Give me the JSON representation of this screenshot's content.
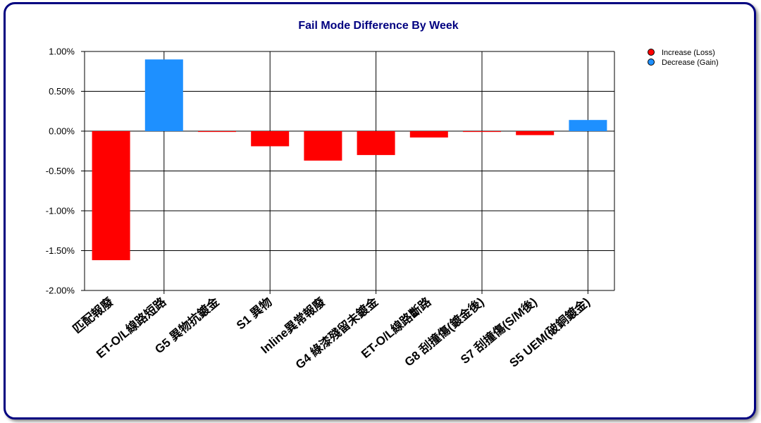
{
  "chart_data": {
    "type": "bar",
    "title": "Fail Mode Difference By Week",
    "xlabel": "",
    "ylabel": "",
    "ylim": [
      -0.02,
      0.01
    ],
    "yticks": [
      "1.00%",
      "0.50%",
      "0.00%",
      "-0.50%",
      "-1.00%",
      "-1.50%",
      "-2.00%"
    ],
    "categories": [
      "匹配報廢",
      "ET-O/L線路短路",
      "G5 異物抗鍍金",
      "S1 異物",
      "Inline異常報廢",
      "G4 綠漆殘留未鍍金",
      "ET-O/L線路斷路",
      "G8 刮撞傷(鍍金後)",
      "S7 刮撞傷(S/M後)",
      "S5 UEM(破銅鍍金)"
    ],
    "values": [
      -0.0162,
      0.009,
      -0.0001,
      -0.0019,
      -0.0037,
      -0.003,
      -0.0008,
      -0.0001,
      -0.0005,
      0.0014
    ],
    "grid": true,
    "legend_position": "top-right",
    "series": [
      {
        "name": "Increase (Loss)",
        "color": "#ff0000"
      },
      {
        "name": "Decrease (Gain)",
        "color": "#1e90ff"
      }
    ]
  }
}
